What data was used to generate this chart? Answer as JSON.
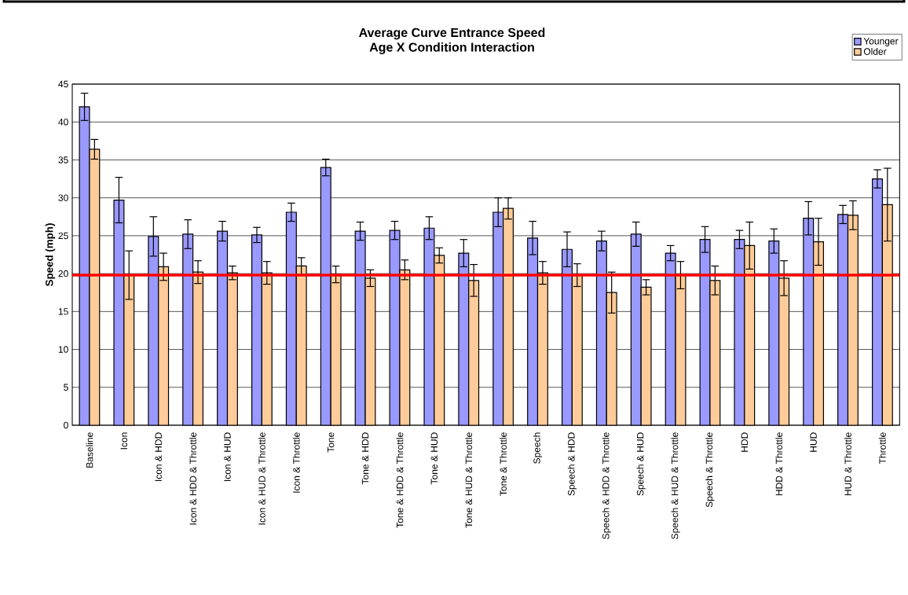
{
  "chart_data": {
    "type": "bar",
    "title": "Average Curve Entrance Speed",
    "subtitle": "Age X Condition Interaction",
    "ylabel": "Speed (mph)",
    "categories": [
      "Baseline",
      "Icon",
      "Icon & HDD",
      "Icon & HDD & Throttle",
      "Icon & HUD",
      "Icon & HUD & Throttle",
      "Icon & Throttle",
      "Tone",
      "Tone & HDD",
      "Tone & HDD & Throttle",
      "Tone & HUD",
      "Tone & HUD & Throttle",
      "Tone & Throttle",
      "Speech",
      "Speech & HDD",
      "Speech & HDD & Throttle",
      "Speech & HUD",
      "Speech & HUD & Throttle",
      "Speech & Throttle",
      "HDD",
      "HDD & Throttle",
      "HUD",
      "HUD & Throttle",
      "Throttle"
    ],
    "series": [
      {
        "name": "Younger",
        "color": "#9999ff",
        "values": [
          42,
          29.7,
          24.9,
          25.2,
          25.6,
          25.1,
          28.1,
          34,
          25.6,
          25.7,
          26,
          22.7,
          28.1,
          24.7,
          23.2,
          24.3,
          25.2,
          22.7,
          24.5,
          24.5,
          24.3,
          27.3,
          27.8,
          32.5
        ],
        "errors": [
          1.8,
          3,
          2.6,
          1.9,
          1.3,
          1,
          1.2,
          1.1,
          1.2,
          1.2,
          1.5,
          1.8,
          1.9,
          2.2,
          2.3,
          1.3,
          1.6,
          1,
          1.7,
          1.2,
          1.6,
          2.2,
          1.2,
          1.2
        ]
      },
      {
        "name": "Older",
        "color": "#ffcc99",
        "values": [
          36.4,
          19.8,
          20.9,
          20.2,
          20.1,
          20.1,
          21,
          19.9,
          19.4,
          20.5,
          22.4,
          19.1,
          28.6,
          20.1,
          19.8,
          17.5,
          18.2,
          19.8,
          19.1,
          23.7,
          19.4,
          24.2,
          27.7,
          29.1
        ],
        "errors": [
          1.3,
          3.2,
          1.8,
          1.5,
          0.9,
          1.5,
          1.1,
          1.1,
          1.1,
          1.3,
          1,
          2.1,
          1.4,
          1.5,
          1.5,
          2.7,
          1,
          1.8,
          1.9,
          3.1,
          2.3,
          3.1,
          1.9,
          4.8
        ]
      }
    ],
    "ylim": [
      0,
      45
    ],
    "yticks": [
      0,
      5,
      10,
      15,
      20,
      25,
      30,
      35,
      40,
      45
    ],
    "grid": "y",
    "legend": "top right",
    "ref_lines": [
      {
        "axis": "y",
        "value": 19.8,
        "color": "#ff0000"
      }
    ]
  }
}
